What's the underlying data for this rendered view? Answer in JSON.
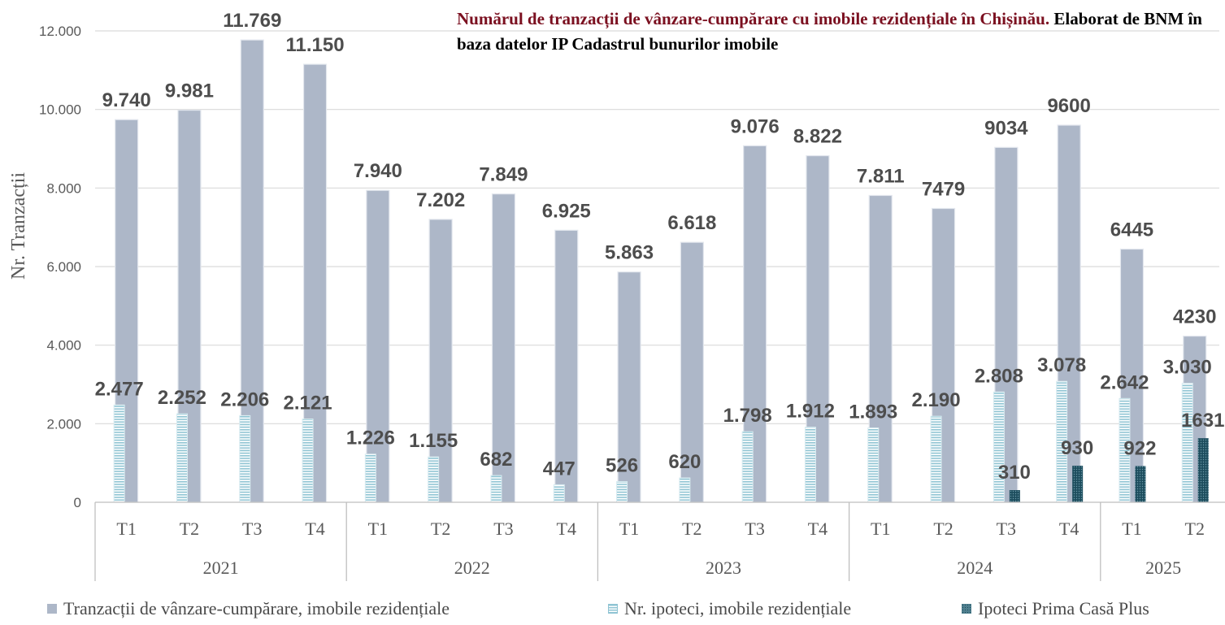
{
  "title": {
    "part1": "Numărul de tranzacții de vânzare-cumpărare cu imobile rezidențiale în Chișinău.",
    "part2": "Elaborat de BNM în baza datelor IP Cadastrul bunurilor imobile"
  },
  "colors": {
    "total": "#adb7c8",
    "ipoteci": "#8fc4d3",
    "prima_casa": "#1d4d5e",
    "label": "#4d4d4d",
    "grid": "#d9d9d9"
  },
  "legend": {
    "total": "Tranzacții de vânzare-cumpărare, imobile rezidențiale",
    "ipoteci": "Nr. ipoteci, imobile rezidențiale",
    "prima_casa": "Ipoteci Prima Casă Plus"
  },
  "chart_data": {
    "type": "bar",
    "ylabel": "Nr. Tranzacții",
    "ylim": [
      0,
      12000
    ],
    "yticks": [
      0,
      2000,
      4000,
      6000,
      8000,
      10000,
      12000
    ],
    "ytick_labels": [
      "0",
      "2.000",
      "4.000",
      "6.000",
      "8.000",
      "10.000",
      "12.000"
    ],
    "grid": true,
    "legend_position": "bottom",
    "groups": [
      {
        "year": "2021",
        "quarters": [
          "T1",
          "T2",
          "T3",
          "T4"
        ]
      },
      {
        "year": "2022",
        "quarters": [
          "T1",
          "T2",
          "T3",
          "T4"
        ]
      },
      {
        "year": "2023",
        "quarters": [
          "T1",
          "T2",
          "T3",
          "T4"
        ]
      },
      {
        "year": "2024",
        "quarters": [
          "T1",
          "T2",
          "T3",
          "T4"
        ]
      },
      {
        "year": "2025",
        "quarters": [
          "T1",
          "T2"
        ]
      }
    ],
    "series": [
      {
        "name": "Tranzacții de vânzare-cumpărare, imobile rezidențiale",
        "values": [
          9740,
          9981,
          11769,
          11150,
          7940,
          7202,
          7849,
          6925,
          5863,
          6618,
          9076,
          8822,
          7811,
          7479,
          9034,
          9600,
          6445,
          4230
        ],
        "labels": [
          "9.740",
          "9.981",
          "11.769",
          "11.150",
          "7.940",
          "7.202",
          "7.849",
          "6.925",
          "5.863",
          "6.618",
          "9.076",
          "8.822",
          "7.811",
          "7479",
          "9034",
          "9600",
          "6445",
          "4230"
        ]
      },
      {
        "name": "Nr. ipoteci, imobile rezidențiale",
        "values": [
          2477,
          2252,
          2206,
          2121,
          1226,
          1155,
          682,
          447,
          526,
          620,
          1798,
          1912,
          1893,
          2190,
          2808,
          3078,
          2642,
          3030
        ],
        "labels": [
          "2.477",
          "2.252",
          "2.206",
          "2.121",
          "1.226",
          "1.155",
          "682",
          "447",
          "526",
          "620",
          "1.798",
          "1.912",
          "1.893",
          "2.190",
          "2.808",
          "3.078",
          "2.642",
          "3.030"
        ]
      },
      {
        "name": "Ipoteci Prima Casă Plus",
        "values": [
          null,
          null,
          null,
          null,
          null,
          null,
          null,
          null,
          null,
          null,
          null,
          null,
          null,
          null,
          310,
          930,
          922,
          1631
        ],
        "labels": [
          "",
          "",
          "",
          "",
          "",
          "",
          "",
          "",
          "",
          "",
          "",
          "",
          "",
          "",
          "310",
          "930",
          "922",
          "1631"
        ]
      }
    ]
  }
}
